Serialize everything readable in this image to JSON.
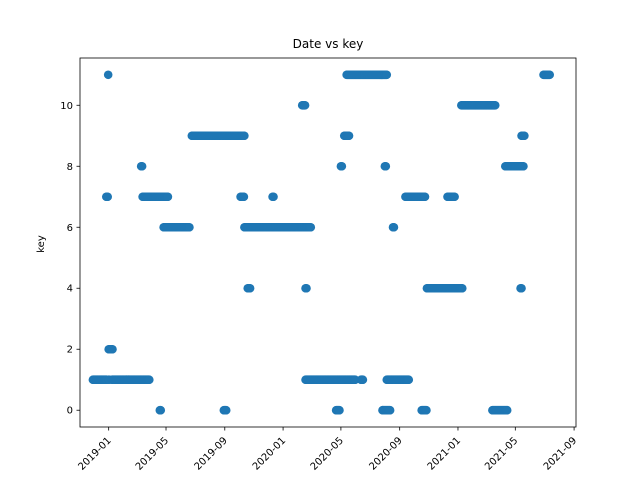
{
  "chart_data": {
    "type": "scatter",
    "title": "Date vs key",
    "xlabel": "",
    "ylabel": "key",
    "grid": false,
    "marker_color": "#1f77b4",
    "ylim": [
      -0.55,
      11.55
    ],
    "xlim": [
      "2018-11-02",
      "2021-09-05"
    ],
    "yticks": [
      0,
      2,
      4,
      6,
      8,
      10
    ],
    "xticks": [
      "2019-01",
      "2019-05",
      "2019-09",
      "2020-01",
      "2020-05",
      "2020-09",
      "2021-01",
      "2021-05",
      "2021-09"
    ],
    "segments": [
      {
        "key": 1,
        "start": "2018-11-29",
        "end": "2018-12-28"
      },
      {
        "key": 7,
        "start": "2018-12-27",
        "end": "2018-12-30"
      },
      {
        "key": 11,
        "start": "2018-12-31",
        "end": "2018-12-31"
      },
      {
        "key": 1,
        "start": "2019-01-01",
        "end": "2019-01-02"
      },
      {
        "key": 2,
        "start": "2019-01-01",
        "end": "2019-01-09"
      },
      {
        "key": 1,
        "start": "2019-01-08",
        "end": "2019-03-27"
      },
      {
        "key": 8,
        "start": "2019-03-10",
        "end": "2019-03-12"
      },
      {
        "key": 7,
        "start": "2019-03-13",
        "end": "2019-05-05"
      },
      {
        "key": 0,
        "start": "2019-04-18",
        "end": "2019-04-20"
      },
      {
        "key": 6,
        "start": "2019-04-26",
        "end": "2019-06-19"
      },
      {
        "key": 9,
        "start": "2019-06-24",
        "end": "2019-10-12"
      },
      {
        "key": 0,
        "start": "2019-08-30",
        "end": "2019-09-04"
      },
      {
        "key": 7,
        "start": "2019-10-04",
        "end": "2019-10-11"
      },
      {
        "key": 4,
        "start": "2019-10-19",
        "end": "2019-10-24"
      },
      {
        "key": 6,
        "start": "2019-10-12",
        "end": "2020-02-28"
      },
      {
        "key": 7,
        "start": "2019-12-10",
        "end": "2019-12-12"
      },
      {
        "key": 10,
        "start": "2020-02-10",
        "end": "2020-02-16"
      },
      {
        "key": 4,
        "start": "2020-02-17",
        "end": "2020-02-19"
      },
      {
        "key": 1,
        "start": "2020-02-17",
        "end": "2020-05-31"
      },
      {
        "key": 0,
        "start": "2020-04-21",
        "end": "2020-04-28"
      },
      {
        "key": 8,
        "start": "2020-05-01",
        "end": "2020-05-03"
      },
      {
        "key": 9,
        "start": "2020-05-08",
        "end": "2020-05-18"
      },
      {
        "key": 11,
        "start": "2020-05-13",
        "end": "2020-08-05"
      },
      {
        "key": 1,
        "start": "2020-06-12",
        "end": "2020-06-16"
      },
      {
        "key": 0,
        "start": "2020-07-27",
        "end": "2020-08-12"
      },
      {
        "key": 8,
        "start": "2020-08-01",
        "end": "2020-08-03"
      },
      {
        "key": 1,
        "start": "2020-08-05",
        "end": "2020-09-20"
      },
      {
        "key": 6,
        "start": "2020-08-18",
        "end": "2020-08-20"
      },
      {
        "key": 7,
        "start": "2020-09-13",
        "end": "2020-10-24"
      },
      {
        "key": 0,
        "start": "2020-10-17",
        "end": "2020-10-27"
      },
      {
        "key": 4,
        "start": "2020-10-28",
        "end": "2021-01-10"
      },
      {
        "key": 7,
        "start": "2020-12-10",
        "end": "2020-12-25"
      },
      {
        "key": 10,
        "start": "2021-01-08",
        "end": "2021-03-20"
      },
      {
        "key": 0,
        "start": "2021-03-14",
        "end": "2021-04-14"
      },
      {
        "key": 8,
        "start": "2021-04-10",
        "end": "2021-05-18"
      },
      {
        "key": 4,
        "start": "2021-05-12",
        "end": "2021-05-14"
      },
      {
        "key": 9,
        "start": "2021-05-14",
        "end": "2021-05-20"
      },
      {
        "key": 11,
        "start": "2021-06-29",
        "end": "2021-07-12"
      }
    ]
  }
}
